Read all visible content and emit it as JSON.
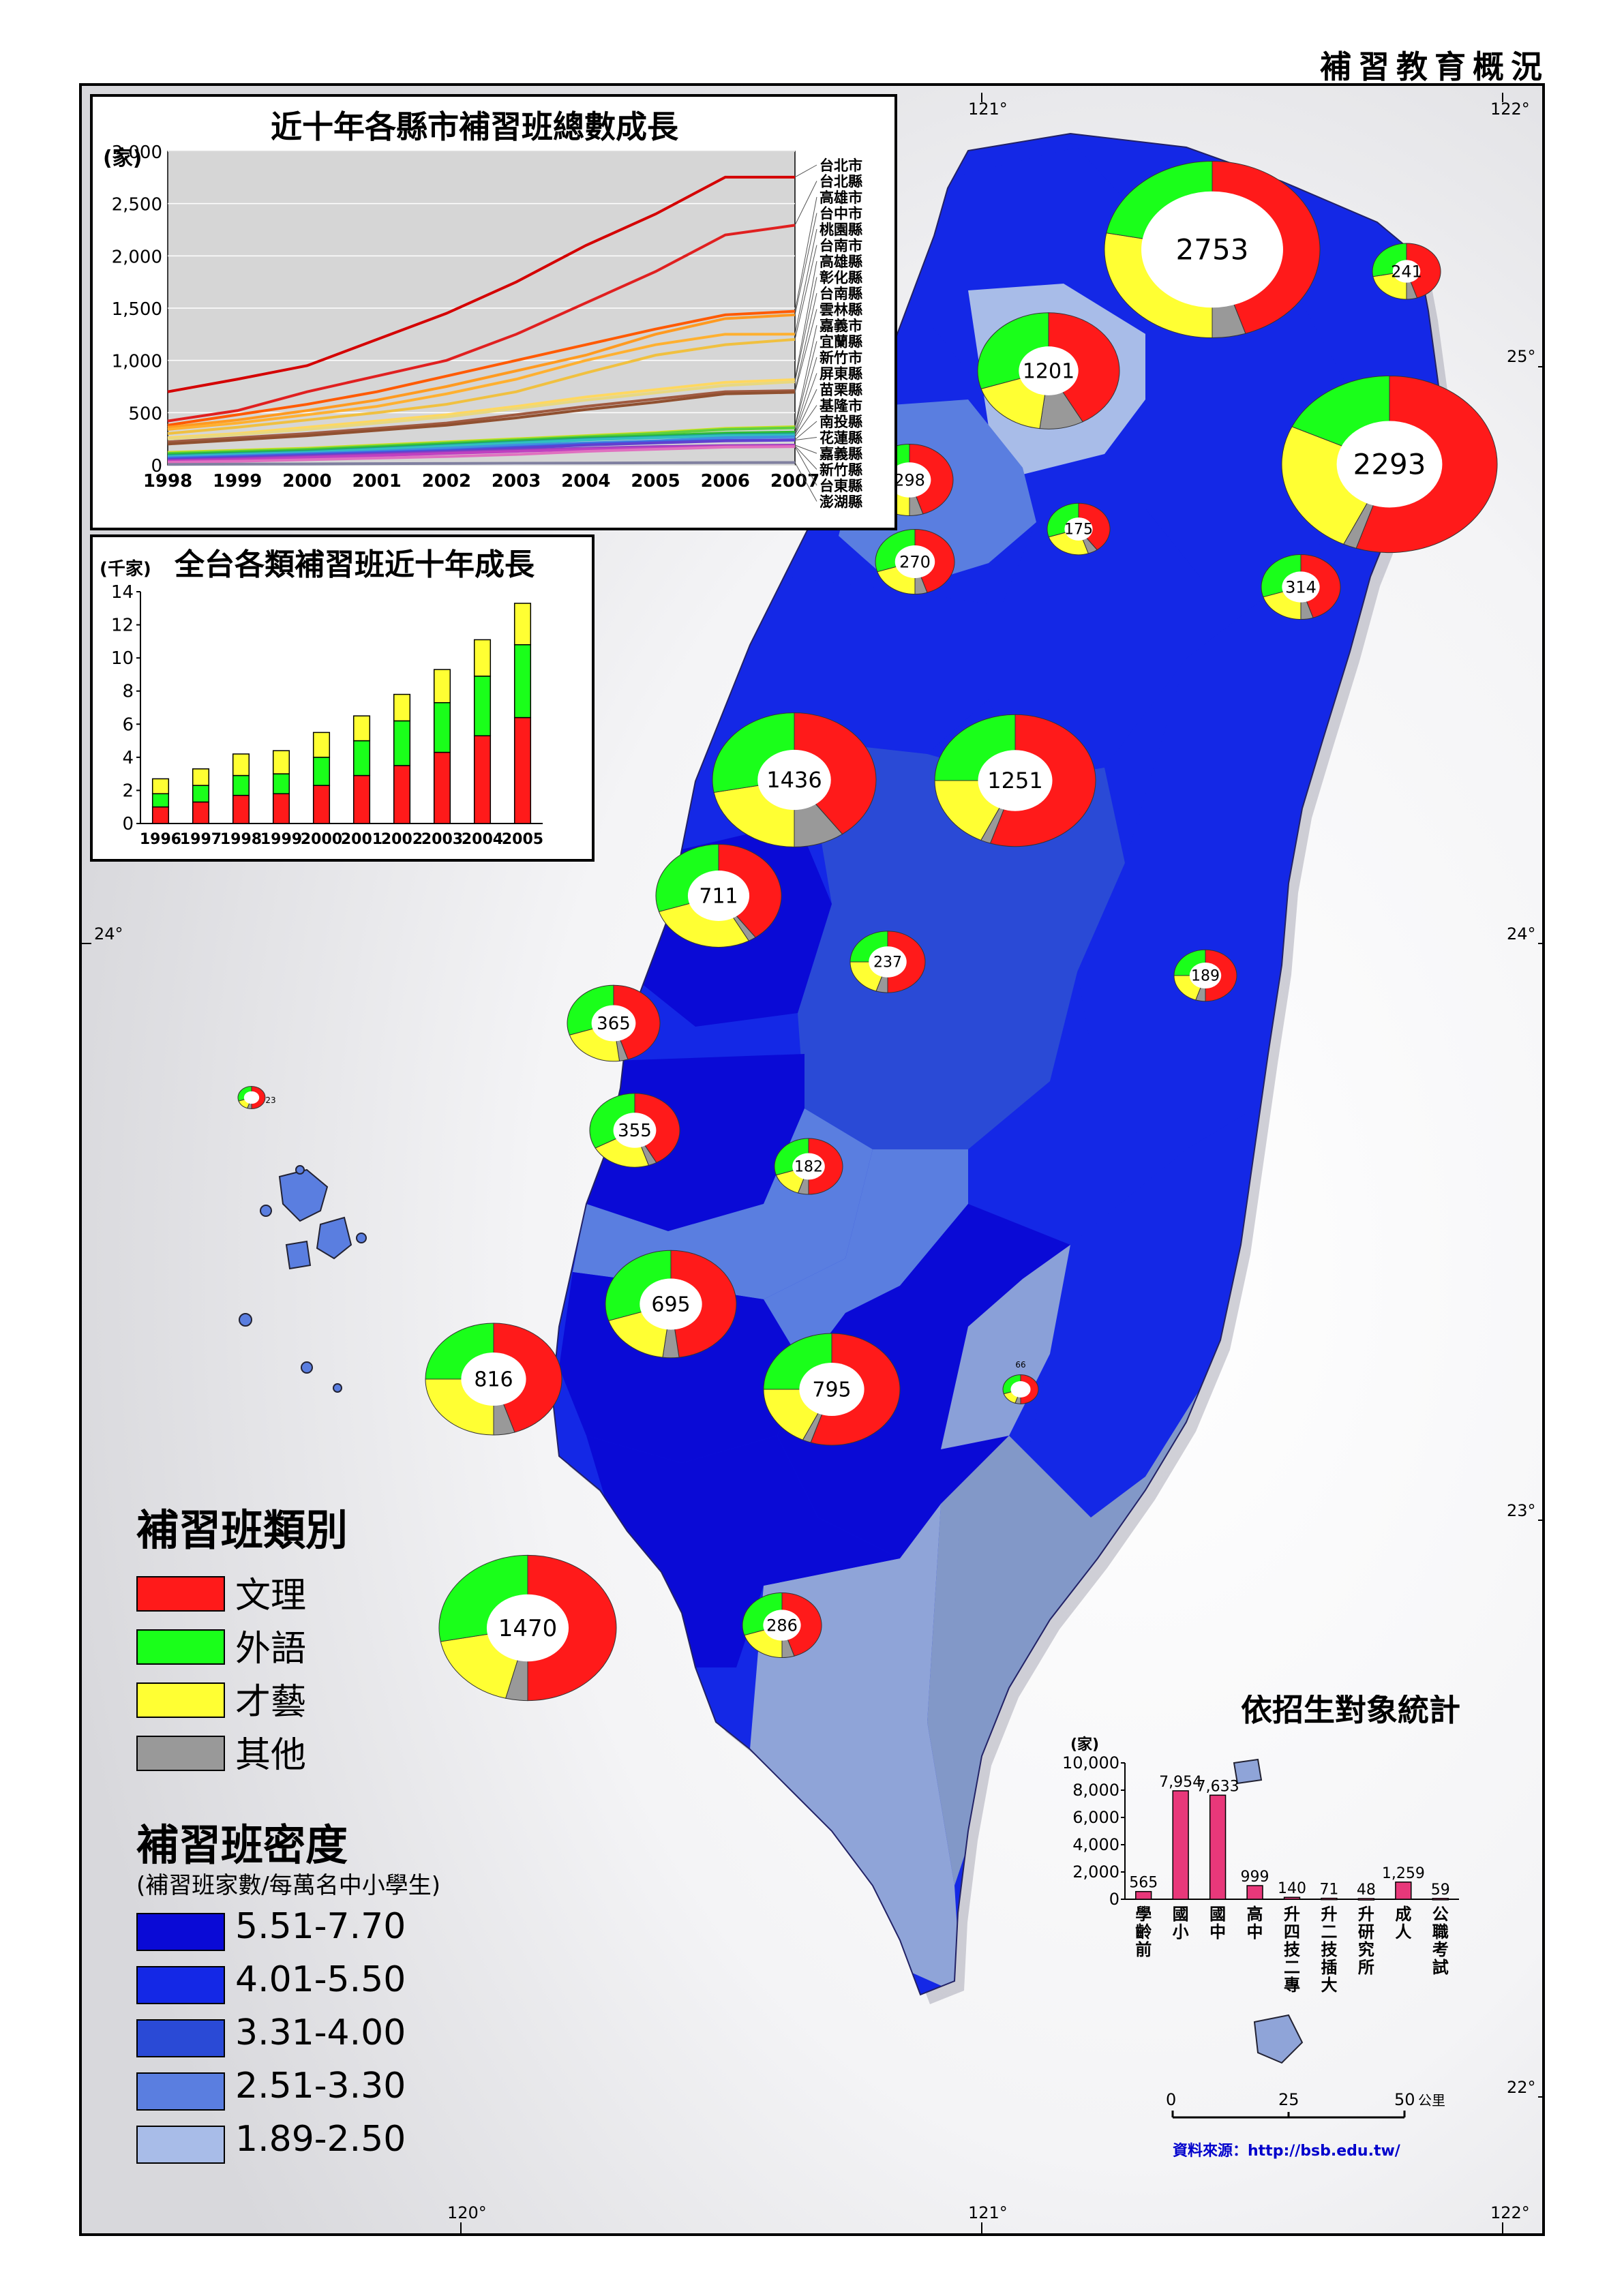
{
  "page_title": "補習教育概況",
  "grid_labels": {
    "lon_120": "120°",
    "lon_121": "121°",
    "lon_122": "122°",
    "lat_22": "22°",
    "lat_23": "23°",
    "lat_24": "24°",
    "lat_25": "25°"
  },
  "category_legend": {
    "title": "補習班類別",
    "items": [
      {
        "label": "文理",
        "color": "#ff1a1a"
      },
      {
        "label": "外語",
        "color": "#1aff1a"
      },
      {
        "label": "才藝",
        "color": "#ffff33"
      },
      {
        "label": "其他",
        "color": "#999999"
      }
    ]
  },
  "density_legend": {
    "title": "補習班密度",
    "subtitle": "(補習班家數/每萬名中小學生)",
    "items": [
      {
        "label": "5.51-7.70",
        "color": "#0a0ad6"
      },
      {
        "label": "4.01-5.50",
        "color": "#1428e6"
      },
      {
        "label": "3.31-4.00",
        "color": "#2a4ad6"
      },
      {
        "label": "2.51-3.30",
        "color": "#5a7ee0"
      },
      {
        "label": "1.89-2.50",
        "color": "#a8bce8"
      }
    ]
  },
  "scale_bar": {
    "ticks": [
      "0",
      "25",
      "50"
    ],
    "unit": "公里"
  },
  "source": "資料來源：http://bsb.edu.tw/",
  "donuts": [
    {
      "label": "2753",
      "r": 0.47,
      "s": [
        0.45,
        0.22,
        0.28,
        0.05
      ]
    },
    {
      "label": "241",
      "r": 0.29,
      "s": [
        0.45,
        0.28,
        0.22,
        0.05
      ]
    },
    {
      "label": "1201",
      "r": 0.3,
      "s": [
        0.42,
        0.3,
        0.18,
        0.1
      ]
    },
    {
      "label": "2293",
      "r": 0.35,
      "s": [
        0.55,
        0.18,
        0.25,
        0.02
      ]
    },
    {
      "label": "298",
      "r": 0.35,
      "s": [
        0.45,
        0.25,
        0.25,
        0.05
      ]
    },
    {
      "label": "175",
      "r": 0.32,
      "s": [
        0.4,
        0.3,
        0.25,
        0.05
      ]
    },
    {
      "label": "270",
      "r": 0.36,
      "s": [
        0.45,
        0.3,
        0.2,
        0.05
      ]
    },
    {
      "label": "314",
      "r": 0.34,
      "s": [
        0.45,
        0.3,
        0.2,
        0.05
      ]
    },
    {
      "label": "1436",
      "r": 0.32,
      "s": [
        0.4,
        0.28,
        0.22,
        0.1
      ]
    },
    {
      "label": "1251",
      "r": 0.33,
      "s": [
        0.55,
        0.25,
        0.18,
        0.02
      ]
    },
    {
      "label": "711",
      "r": 0.35,
      "s": [
        0.4,
        0.3,
        0.28,
        0.02
      ]
    },
    {
      "label": "237",
      "r": 0.36,
      "s": [
        0.5,
        0.25,
        0.2,
        0.05
      ]
    },
    {
      "label": "189",
      "r": 0.36,
      "s": [
        0.5,
        0.25,
        0.2,
        0.05
      ]
    },
    {
      "label": "365",
      "r": 0.34,
      "s": [
        0.45,
        0.3,
        0.22,
        0.03
      ]
    },
    {
      "label": "23",
      "r": 0.4,
      "s": [
        0.5,
        0.3,
        0.15,
        0.05
      ]
    },
    {
      "label": "355",
      "r": 0.34,
      "s": [
        0.42,
        0.33,
        0.22,
        0.03
      ]
    },
    {
      "label": "182",
      "r": 0.34,
      "s": [
        0.5,
        0.3,
        0.15,
        0.05
      ]
    },
    {
      "label": "695",
      "r": 0.34,
      "s": [
        0.48,
        0.3,
        0.18,
        0.04
      ]
    },
    {
      "label": "816",
      "r": 0.34,
      "s": [
        0.45,
        0.25,
        0.25,
        0.05
      ]
    },
    {
      "label": "795",
      "r": 0.34,
      "s": [
        0.55,
        0.25,
        0.18,
        0.02
      ]
    },
    {
      "label": "66",
      "r": 0.4,
      "s": [
        0.5,
        0.3,
        0.15,
        0.05
      ]
    },
    {
      "label": "1470",
      "r": 0.33,
      "s": [
        0.5,
        0.28,
        0.18,
        0.04
      ]
    },
    {
      "label": "286",
      "r": 0.34,
      "s": [
        0.45,
        0.3,
        0.2,
        0.05
      ]
    }
  ],
  "chart_data": [
    {
      "type": "line",
      "title": "近十年各縣市補習班總數成長",
      "ylabel": "(家)",
      "x": [
        "1998",
        "1999",
        "2000",
        "2001",
        "2002",
        "2003",
        "2004",
        "2005",
        "2006",
        "2007"
      ],
      "ylim": [
        0,
        3000
      ],
      "yticks": [
        "0",
        "500",
        "1,000",
        "1,500",
        "2,000",
        "2,500",
        "3,000"
      ],
      "grid": true,
      "legend_position": "right",
      "series": [
        {
          "name": "台北市",
          "color": "#d40000",
          "values": [
            700,
            820,
            950,
            1200,
            1450,
            1750,
            2100,
            2400,
            2753,
            2753
          ]
        },
        {
          "name": "台北縣",
          "color": "#e02020",
          "values": [
            420,
            520,
            700,
            850,
            1000,
            1250,
            1550,
            1850,
            2200,
            2293
          ]
        },
        {
          "name": "高雄市",
          "color": "#ff5a00",
          "values": [
            380,
            480,
            580,
            700,
            850,
            1000,
            1150,
            1300,
            1436,
            1470
          ]
        },
        {
          "name": "台中市",
          "color": "#ff9a20",
          "values": [
            360,
            430,
            520,
            620,
            750,
            900,
            1050,
            1250,
            1400,
            1436
          ]
        },
        {
          "name": "桃園縣",
          "color": "#ffb030",
          "values": [
            340,
            400,
            480,
            560,
            680,
            820,
            1000,
            1150,
            1250,
            1251
          ]
        },
        {
          "name": "台南市",
          "color": "#f0c040",
          "values": [
            300,
            360,
            430,
            500,
            580,
            700,
            880,
            1050,
            1150,
            1201
          ]
        },
        {
          "name": "高雄縣",
          "color": "#ffd860",
          "values": [
            260,
            300,
            360,
            420,
            480,
            560,
            650,
            720,
            790,
            816
          ]
        },
        {
          "name": "彰化縣",
          "color": "#e8d880",
          "values": [
            250,
            290,
            340,
            400,
            460,
            540,
            620,
            690,
            760,
            795
          ]
        },
        {
          "name": "台南縣",
          "color": "#a05a40",
          "values": [
            220,
            260,
            300,
            350,
            400,
            480,
            560,
            630,
            700,
            711
          ]
        },
        {
          "name": "雲林縣",
          "color": "#905030",
          "values": [
            200,
            240,
            280,
            330,
            380,
            450,
            530,
            600,
            680,
            695
          ]
        },
        {
          "name": "嘉義市",
          "color": "#c8e020",
          "values": [
            120,
            140,
            160,
            190,
            220,
            250,
            280,
            310,
            350,
            365
          ]
        },
        {
          "name": "宜蘭縣",
          "color": "#60d040",
          "values": [
            110,
            130,
            150,
            180,
            210,
            240,
            270,
            300,
            340,
            355
          ]
        },
        {
          "name": "新竹市",
          "color": "#30c030",
          "values": [
            100,
            120,
            140,
            170,
            200,
            230,
            260,
            280,
            305,
            314
          ]
        },
        {
          "name": "屏東縣",
          "color": "#20a080",
          "values": [
            90,
            110,
            130,
            160,
            190,
            220,
            250,
            270,
            290,
            298
          ]
        },
        {
          "name": "苗栗縣",
          "color": "#30c0c0",
          "values": [
            80,
            100,
            120,
            150,
            180,
            210,
            240,
            260,
            280,
            286
          ]
        },
        {
          "name": "基隆市",
          "color": "#4090e0",
          "values": [
            70,
            90,
            110,
            130,
            160,
            190,
            210,
            230,
            260,
            270
          ]
        },
        {
          "name": "南投縣",
          "color": "#4060e0",
          "values": [
            60,
            80,
            100,
            120,
            140,
            170,
            200,
            220,
            235,
            241
          ]
        },
        {
          "name": "花蓮縣",
          "color": "#6040d0",
          "values": [
            50,
            70,
            90,
            110,
            130,
            160,
            190,
            210,
            230,
            237
          ]
        },
        {
          "name": "嘉義縣",
          "color": "#9040c0",
          "values": [
            40,
            60,
            80,
            100,
            120,
            140,
            160,
            175,
            185,
            189
          ]
        },
        {
          "name": "新竹縣",
          "color": "#c040c0",
          "values": [
            35,
            50,
            70,
            90,
            110,
            130,
            150,
            165,
            178,
            182
          ]
        },
        {
          "name": "台東縣",
          "color": "#e070c0",
          "values": [
            25,
            35,
            50,
            65,
            80,
            100,
            130,
            150,
            170,
            175
          ]
        },
        {
          "name": "澎湖縣",
          "color": "#8080a0",
          "values": [
            5,
            8,
            10,
            12,
            14,
            16,
            18,
            20,
            22,
            23
          ]
        }
      ]
    },
    {
      "type": "bar",
      "title": "全台各類補習班近十年成長",
      "ylabel": "(千家)",
      "categories": [
        "1996",
        "1997",
        "1998",
        "1999",
        "2000",
        "2001",
        "2002",
        "2003",
        "2004",
        "2005"
      ],
      "ylim": [
        0,
        14
      ],
      "yticks": [
        "0",
        "2",
        "4",
        "6",
        "8",
        "10",
        "12",
        "14"
      ],
      "stacked": true,
      "series": [
        {
          "color": "#ff1a1a",
          "values": [
            1.0,
            1.3,
            1.7,
            1.8,
            2.3,
            2.9,
            3.5,
            4.3,
            5.3,
            6.4
          ]
        },
        {
          "color": "#1aff1a",
          "values": [
            0.8,
            1.0,
            1.2,
            1.2,
            1.7,
            2.1,
            2.7,
            3.0,
            3.6,
            4.4
          ]
        },
        {
          "color": "#ffff33",
          "values": [
            0.9,
            1.0,
            1.3,
            1.4,
            1.5,
            1.5,
            1.6,
            2.0,
            2.2,
            2.5
          ]
        }
      ]
    },
    {
      "type": "bar",
      "title": "依招生對象統計",
      "ylabel": "(家)",
      "categories": [
        "學齡前",
        "國小",
        "國中",
        "高中",
        "升四技二專",
        "升二技插大",
        "升研究所",
        "成人",
        "公職考試"
      ],
      "values": [
        565,
        7954,
        7633,
        999,
        140,
        71,
        48,
        1259,
        59
      ],
      "value_labels": [
        "565",
        "7,954",
        "7,633",
        "999",
        "140",
        "71",
        "48",
        "1,259",
        "59"
      ],
      "ylim": [
        0,
        10000
      ],
      "yticks": [
        "0",
        "2,000",
        "4,000",
        "6,000",
        "8,000",
        "10,000"
      ]
    }
  ]
}
